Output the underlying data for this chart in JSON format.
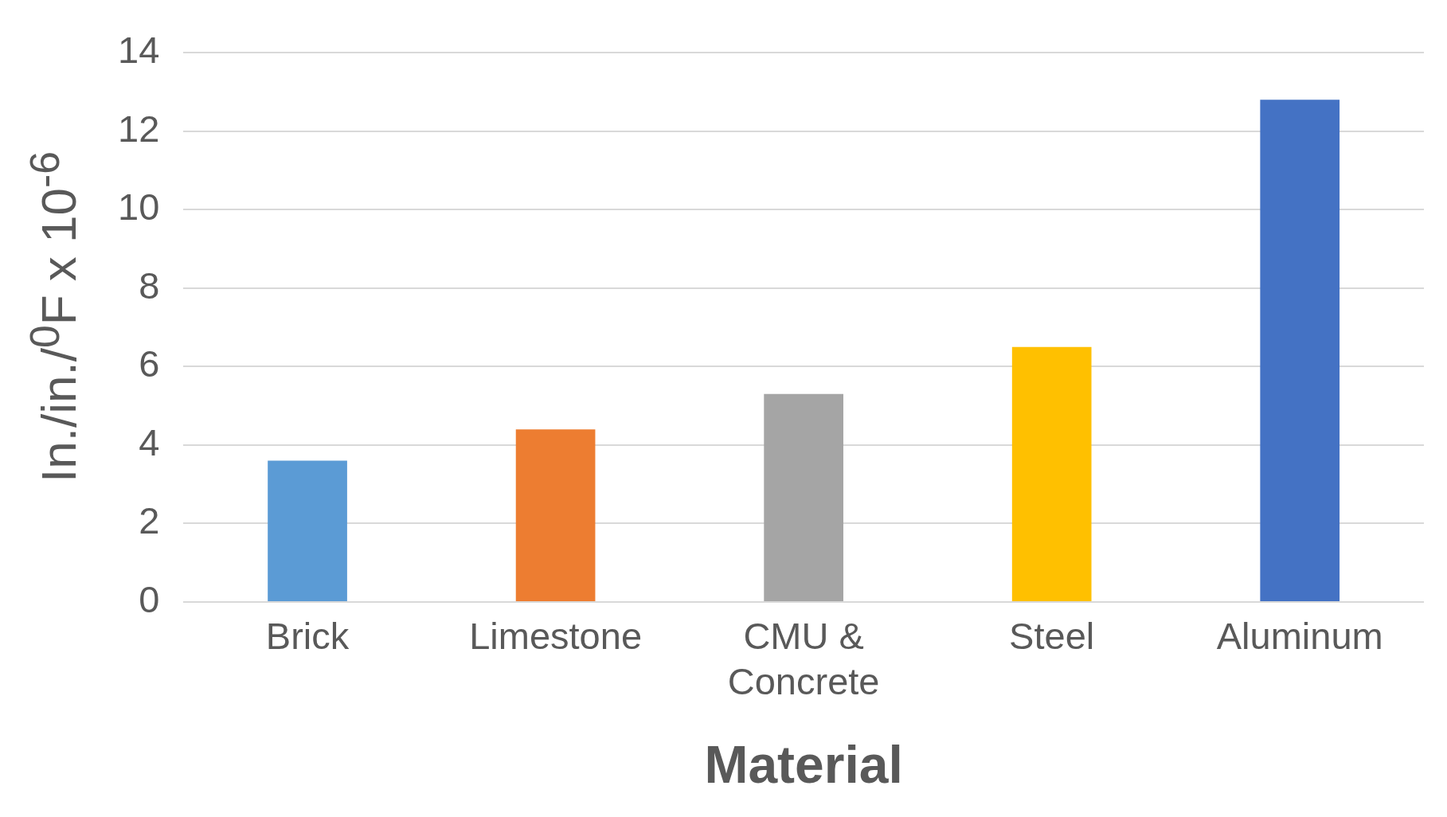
{
  "chart_data": {
    "type": "bar",
    "xlabel": "Material",
    "ylabel": "In./in./$^{0}$F x 10$^{-6}$",
    "categories": [
      "Brick",
      "Limestone",
      "CMU & Concrete",
      "Steel",
      "Aluminum"
    ],
    "values": [
      3.6,
      4.4,
      5.3,
      6.5,
      12.8
    ],
    "colors": [
      "#5b9bd5",
      "#ed7d31",
      "#a5a5a5",
      "#ffc000",
      "#4472c4"
    ],
    "ylim": [
      0,
      14
    ],
    "yticks": [
      0,
      2,
      4,
      6,
      8,
      10,
      12,
      14
    ],
    "grid": "y"
  }
}
